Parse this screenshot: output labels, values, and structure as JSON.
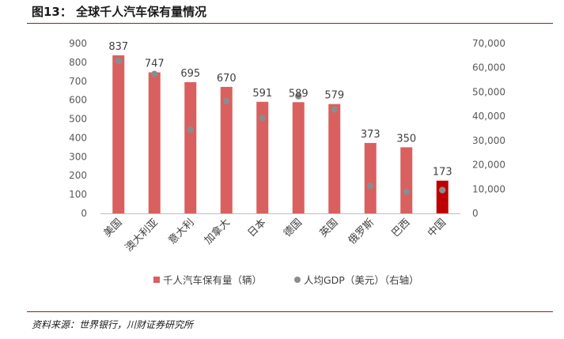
{
  "header": {
    "title": "图13： 全球千人汽车保有量情况"
  },
  "footer": {
    "source": "资料来源：世界银行，川财证券研究所"
  },
  "colors": {
    "bar": "#d9605f",
    "bar_highlight": "#c00000",
    "dot": "#8c8c8c",
    "accent": "#9a1b1b"
  },
  "chart_data": {
    "type": "bar",
    "categories": [
      "美国",
      "澳大利亚",
      "意大利",
      "加拿大",
      "日本",
      "德国",
      "英国",
      "俄罗斯",
      "巴西",
      "中国"
    ],
    "series": [
      {
        "name": "千人汽车保有量（辆）",
        "type": "bar",
        "axis": "left",
        "values": [
          837,
          747,
          695,
          670,
          591,
          589,
          579,
          373,
          350,
          173
        ]
      },
      {
        "name": "人均GDP（美元）（右轴）",
        "type": "scatter",
        "axis": "right",
        "values": [
          62800,
          57400,
          34500,
          46300,
          39300,
          48300,
          42800,
          11300,
          8900,
          9600
        ]
      }
    ],
    "data_labels": [
      "837",
      "747",
      "695",
      "670",
      "591",
      "589",
      "579",
      "373",
      "350",
      "173"
    ],
    "yleft": {
      "lim": [
        0,
        900
      ],
      "ticks": [
        "0",
        "100",
        "200",
        "300",
        "400",
        "500",
        "600",
        "700",
        "800",
        "900"
      ]
    },
    "yright": {
      "lim": [
        0,
        70000
      ],
      "ticks": [
        "0",
        "10,000",
        "20,000",
        "30,000",
        "40,000",
        "50,000",
        "60,000",
        "70,000"
      ]
    },
    "highlight_category": "中国",
    "legend": {
      "position": "bottom",
      "items": [
        "千人汽车保有量（辆）",
        "人均GDP（美元）（右轴）"
      ]
    }
  }
}
